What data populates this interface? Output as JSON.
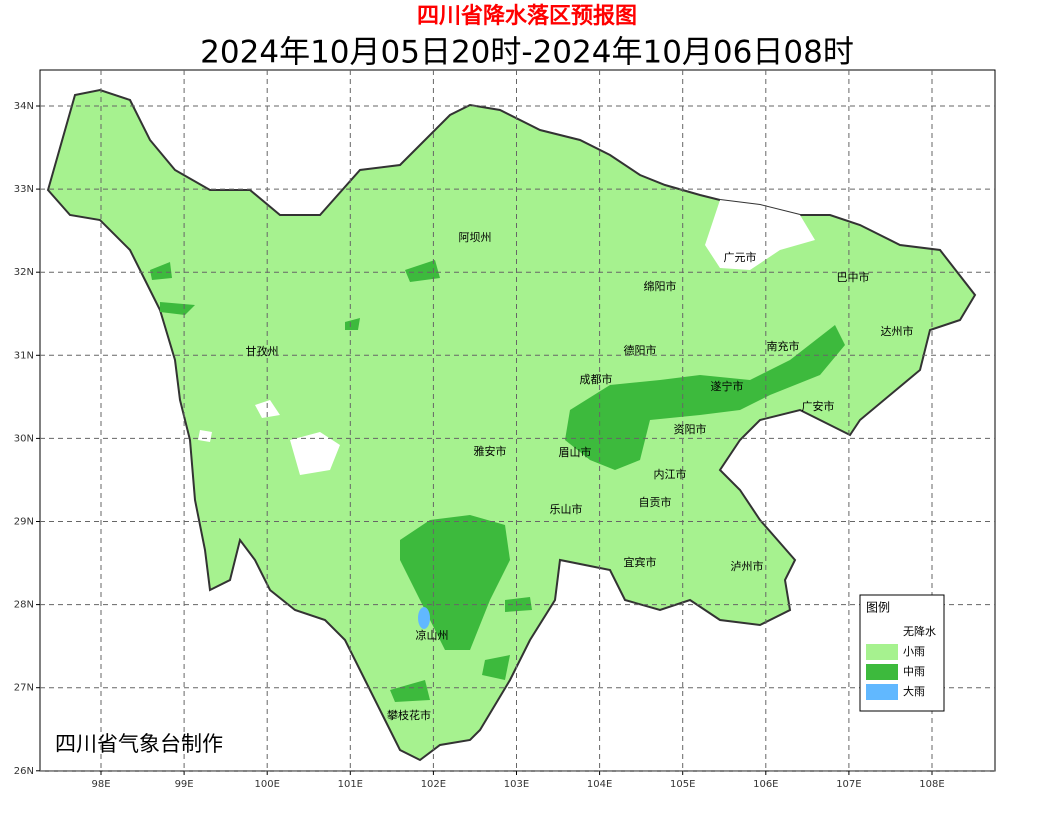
{
  "header": {
    "title": "四川省降水落区预报图",
    "subtitle": "2024年10月05日20时-2024年10月06日08时"
  },
  "map": {
    "lon_ticks": [
      {
        "value": 98,
        "label": "98E"
      },
      {
        "value": 99,
        "label": "99E"
      },
      {
        "value": 100,
        "label": "100E"
      },
      {
        "value": 101,
        "label": "101E"
      },
      {
        "value": 102,
        "label": "102E"
      },
      {
        "value": 103,
        "label": "103E"
      },
      {
        "value": 104,
        "label": "104E"
      },
      {
        "value": 105,
        "label": "105E"
      },
      {
        "value": 106,
        "label": "106E"
      },
      {
        "value": 107,
        "label": "107E"
      },
      {
        "value": 108,
        "label": "108E"
      }
    ],
    "lat_ticks": [
      {
        "value": 34,
        "label": "34N"
      },
      {
        "value": 33,
        "label": "33N"
      },
      {
        "value": 32,
        "label": "32N"
      },
      {
        "value": 31,
        "label": "31N"
      },
      {
        "value": 30,
        "label": "30N"
      },
      {
        "value": 29,
        "label": "29N"
      },
      {
        "value": 28,
        "label": "28N"
      },
      {
        "value": 27,
        "label": "27N"
      },
      {
        "value": 26,
        "label": "26N"
      }
    ],
    "cities": [
      "阿坝州",
      "广元市",
      "巴中市",
      "绵阳市",
      "达州市",
      "甘孜州",
      "德阳市",
      "南充市",
      "成都市",
      "遂宁市",
      "广安市",
      "资阳市",
      "雅安市",
      "眉山市",
      "内江市",
      "自贡市",
      "乐山市",
      "宜宾市",
      "泸州市",
      "凉山州",
      "攀枝花市"
    ],
    "credit": "四川省气象台制作"
  },
  "legend": {
    "title": "图例",
    "items": [
      {
        "label": "无降水",
        "color": "#ffffff"
      },
      {
        "label": "小雨",
        "color": "#a6f28f"
      },
      {
        "label": "中雨",
        "color": "#3dba3d"
      },
      {
        "label": "大雨",
        "color": "#61b8ff"
      }
    ]
  }
}
